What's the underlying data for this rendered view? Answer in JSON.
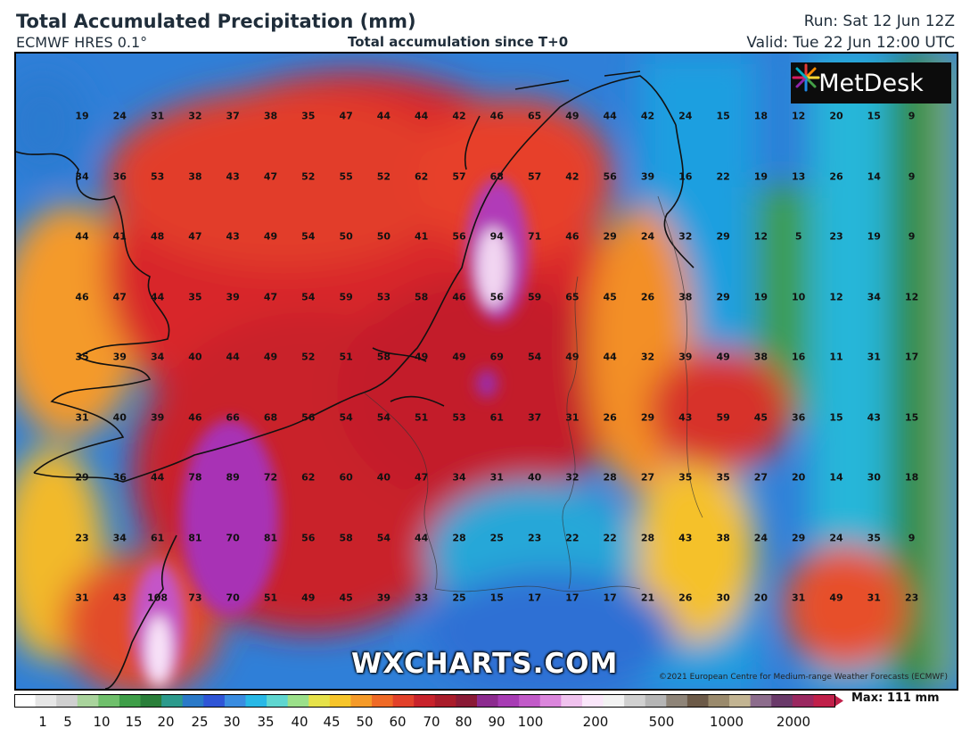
{
  "header": {
    "title": "Total Accumulated Precipitation (mm)",
    "model": "ECMWF HRES 0.1°",
    "subtitle": "Total accumulation since T+0",
    "run": "Run: Sat 12 Jun 12Z",
    "valid": "Valid: Tue 22 Jun 12:00 UTC"
  },
  "branding": {
    "logo_text": "MetDesk",
    "watermark": "WXCHARTS.COM",
    "copyright": "©2021 European Centre for Medium-range Weather Forecasts (ECMWF)"
  },
  "legend": {
    "max_label": "Max: 111 mm",
    "ticks": [
      "1",
      "5",
      "10",
      "15",
      "20",
      "25",
      "30",
      "35",
      "40",
      "45",
      "50",
      "60",
      "70",
      "80",
      "90",
      "100",
      "200",
      "500",
      "1000",
      "2000"
    ]
  },
  "grid_values": [
    [
      "19",
      "24",
      "31",
      "32",
      "37",
      "38",
      "35",
      "47",
      "44",
      "44",
      "42",
      "46",
      "65",
      "49",
      "44",
      "42",
      "24",
      "15",
      "18",
      "12",
      "20",
      "15",
      "9"
    ],
    [
      "34",
      "36",
      "53",
      "38",
      "43",
      "47",
      "52",
      "55",
      "52",
      "62",
      "57",
      "68",
      "57",
      "42",
      "56",
      "39",
      "16",
      "22",
      "19",
      "13",
      "26",
      "14",
      "9"
    ],
    [
      "44",
      "41",
      "48",
      "47",
      "43",
      "49",
      "54",
      "50",
      "50",
      "41",
      "56",
      "94",
      "71",
      "46",
      "29",
      "24",
      "32",
      "29",
      "12",
      "5",
      "23",
      "19",
      "9"
    ],
    [
      "46",
      "47",
      "44",
      "35",
      "39",
      "47",
      "54",
      "59",
      "53",
      "58",
      "46",
      "56",
      "59",
      "65",
      "45",
      "26",
      "38",
      "29",
      "19",
      "10",
      "12",
      "34",
      "12"
    ],
    [
      "35",
      "39",
      "34",
      "40",
      "44",
      "49",
      "52",
      "51",
      "58",
      "49",
      "49",
      "69",
      "54",
      "49",
      "44",
      "32",
      "39",
      "49",
      "38",
      "16",
      "11",
      "31",
      "17"
    ],
    [
      "31",
      "40",
      "39",
      "46",
      "66",
      "68",
      "56",
      "54",
      "54",
      "51",
      "53",
      "61",
      "37",
      "31",
      "26",
      "29",
      "43",
      "59",
      "45",
      "36",
      "15",
      "43",
      "15"
    ],
    [
      "29",
      "36",
      "44",
      "78",
      "89",
      "72",
      "62",
      "60",
      "40",
      "47",
      "34",
      "31",
      "40",
      "32",
      "28",
      "27",
      "35",
      "35",
      "27",
      "20",
      "14",
      "30",
      "18"
    ],
    [
      "23",
      "34",
      "61",
      "81",
      "70",
      "81",
      "56",
      "58",
      "54",
      "44",
      "28",
      "25",
      "23",
      "22",
      "22",
      "28",
      "43",
      "38",
      "24",
      "29",
      "24",
      "35",
      "9"
    ],
    [
      "31",
      "43",
      "108",
      "73",
      "70",
      "51",
      "49",
      "45",
      "39",
      "33",
      "25",
      "15",
      "17",
      "17",
      "17",
      "21",
      "26",
      "30",
      "20",
      "31",
      "49",
      "31",
      "23"
    ]
  ],
  "colors": {
    "map_bg": "#c1272d",
    "coast": "#111111"
  }
}
